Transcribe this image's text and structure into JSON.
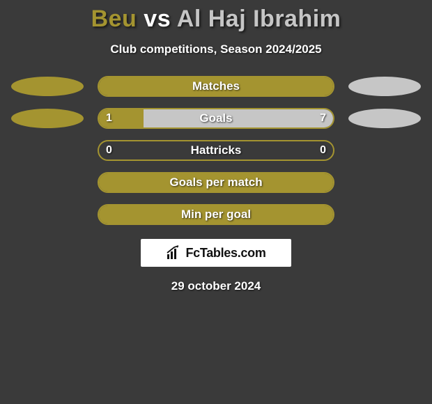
{
  "colors": {
    "player1": "#a49430",
    "player2": "#c6c6c6",
    "bar_border": "#a49430",
    "background": "#3a3a3a"
  },
  "title": {
    "player1": "Beu",
    "vs": "vs",
    "player2": "Al Haj Ibrahim"
  },
  "subtitle": "Club competitions, Season 2024/2025",
  "rows": [
    {
      "label": "Matches",
      "show_side_ovals": true,
      "left_value": null,
      "right_value": null,
      "left_pct": 100,
      "segments": "both"
    },
    {
      "label": "Goals",
      "show_side_ovals": true,
      "left_value": "1",
      "right_value": "7",
      "left_pct": 19,
      "segments": "both"
    },
    {
      "label": "Hattricks",
      "show_side_ovals": false,
      "left_value": "0",
      "right_value": "0",
      "left_pct": 0,
      "segments": "none"
    },
    {
      "label": "Goals per match",
      "show_side_ovals": false,
      "left_value": null,
      "right_value": null,
      "left_pct": 100,
      "segments": "both"
    },
    {
      "label": "Min per goal",
      "show_side_ovals": false,
      "left_value": null,
      "right_value": null,
      "left_pct": 100,
      "segments": "left-only"
    }
  ],
  "brand": "FcTables.com",
  "date": "29 october 2024"
}
